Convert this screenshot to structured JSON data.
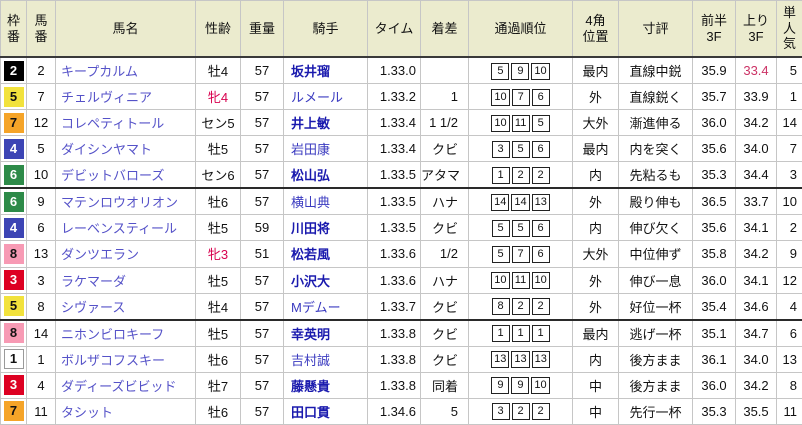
{
  "table": {
    "columns": [
      {
        "key": "waku",
        "label": "枠\n番"
      },
      {
        "key": "umaban",
        "label": "馬\n番"
      },
      {
        "key": "name",
        "label": "馬名"
      },
      {
        "key": "sexage",
        "label": "性齢"
      },
      {
        "key": "weight",
        "label": "重量"
      },
      {
        "key": "jockey",
        "label": "騎手"
      },
      {
        "key": "time",
        "label": "タイム"
      },
      {
        "key": "margin",
        "label": "着差"
      },
      {
        "key": "passing",
        "label": "通過順位"
      },
      {
        "key": "corner",
        "label": "4角\n位置"
      },
      {
        "key": "comment",
        "label": "寸評"
      },
      {
        "key": "first3f",
        "label": "前半\n3F"
      },
      {
        "key": "last3f",
        "label": "上り\n3F"
      },
      {
        "key": "pop",
        "label": "単\n人\n気"
      }
    ],
    "rows": [
      {
        "waku": "2",
        "umaban": "2",
        "name": "キープカルム",
        "sexage": "牡4",
        "sex_red": false,
        "weight": "57",
        "jockey": "坂井瑠",
        "jockey_bold": true,
        "time": "1.33.0",
        "margin": "",
        "passing": [
          "5",
          "9",
          "10"
        ],
        "corner": "最内",
        "comment": "直線中鋭",
        "first3f": "35.9",
        "last3f": "33.4",
        "last3f_red": true,
        "pop": "5",
        "group_end": false
      },
      {
        "waku": "5",
        "umaban": "7",
        "name": "チェルヴィニア",
        "sexage": "牝4",
        "sex_red": true,
        "weight": "57",
        "jockey": "ルメール",
        "jockey_bold": false,
        "time": "1.33.2",
        "margin": "1",
        "passing": [
          "10",
          "7",
          "6"
        ],
        "corner": "外",
        "comment": "直線鋭く",
        "first3f": "35.7",
        "last3f": "33.9",
        "last3f_red": false,
        "pop": "1",
        "group_end": false
      },
      {
        "waku": "7",
        "umaban": "12",
        "name": "コレペティトール",
        "sexage": "セン5",
        "sex_red": false,
        "weight": "57",
        "jockey": "井上敏",
        "jockey_bold": true,
        "time": "1.33.4",
        "margin": "1 1/2",
        "passing": [
          "10",
          "11",
          "5"
        ],
        "corner": "大外",
        "comment": "漸進伸る",
        "first3f": "36.0",
        "last3f": "34.2",
        "last3f_red": false,
        "pop": "14",
        "group_end": false
      },
      {
        "waku": "4",
        "umaban": "5",
        "name": "ダイシンヤマト",
        "sexage": "牡5",
        "sex_red": false,
        "weight": "57",
        "jockey": "岩田康",
        "jockey_bold": false,
        "time": "1.33.4",
        "margin": "クビ",
        "passing": [
          "3",
          "5",
          "6"
        ],
        "corner": "最内",
        "comment": "内を突く",
        "first3f": "35.6",
        "last3f": "34.0",
        "last3f_red": false,
        "pop": "7",
        "group_end": false
      },
      {
        "waku": "6",
        "umaban": "10",
        "name": "デビットバローズ",
        "sexage": "セン6",
        "sex_red": false,
        "weight": "57",
        "jockey": "松山弘",
        "jockey_bold": true,
        "time": "1.33.5",
        "margin": "アタマ",
        "passing": [
          "1",
          "2",
          "2"
        ],
        "corner": "内",
        "comment": "先粘るも",
        "first3f": "35.3",
        "last3f": "34.4",
        "last3f_red": false,
        "pop": "3",
        "group_end": true
      },
      {
        "waku": "6",
        "umaban": "9",
        "name": "マテンロウオリオン",
        "sexage": "牡6",
        "sex_red": false,
        "weight": "57",
        "jockey": "横山典",
        "jockey_bold": false,
        "time": "1.33.5",
        "margin": "ハナ",
        "passing": [
          "14",
          "14",
          "13"
        ],
        "corner": "外",
        "comment": "殿り伸も",
        "first3f": "36.5",
        "last3f": "33.7",
        "last3f_red": false,
        "pop": "10",
        "group_end": false
      },
      {
        "waku": "4",
        "umaban": "6",
        "name": "レーベンスティール",
        "sexage": "牡5",
        "sex_red": false,
        "weight": "59",
        "jockey": "川田将",
        "jockey_bold": true,
        "time": "1.33.5",
        "margin": "クビ",
        "passing": [
          "5",
          "5",
          "6"
        ],
        "corner": "内",
        "comment": "伸び欠く",
        "first3f": "35.6",
        "last3f": "34.1",
        "last3f_red": false,
        "pop": "2",
        "group_end": false
      },
      {
        "waku": "8",
        "umaban": "13",
        "name": "ダンツエラン",
        "sexage": "牝3",
        "sex_red": true,
        "weight": "51",
        "jockey": "松若風",
        "jockey_bold": true,
        "time": "1.33.6",
        "margin": "1/2",
        "passing": [
          "5",
          "7",
          "6"
        ],
        "corner": "大外",
        "comment": "中位伸ず",
        "first3f": "35.8",
        "last3f": "34.2",
        "last3f_red": false,
        "pop": "9",
        "group_end": false
      },
      {
        "waku": "3",
        "umaban": "3",
        "name": "ラケマーダ",
        "sexage": "牡5",
        "sex_red": false,
        "weight": "57",
        "jockey": "小沢大",
        "jockey_bold": true,
        "time": "1.33.6",
        "margin": "ハナ",
        "passing": [
          "10",
          "11",
          "10"
        ],
        "corner": "外",
        "comment": "伸び一息",
        "first3f": "36.0",
        "last3f": "34.1",
        "last3f_red": false,
        "pop": "12",
        "group_end": false
      },
      {
        "waku": "5",
        "umaban": "8",
        "name": "シヴァース",
        "sexage": "牡4",
        "sex_red": false,
        "weight": "57",
        "jockey": "Mデムー",
        "jockey_bold": false,
        "time": "1.33.7",
        "margin": "クビ",
        "passing": [
          "8",
          "2",
          "2"
        ],
        "corner": "外",
        "comment": "好位一杯",
        "first3f": "35.4",
        "last3f": "34.6",
        "last3f_red": false,
        "pop": "4",
        "group_end": true
      },
      {
        "waku": "8",
        "umaban": "14",
        "name": "ニホンビロキーフ",
        "sexage": "牡5",
        "sex_red": false,
        "weight": "57",
        "jockey": "幸英明",
        "jockey_bold": true,
        "time": "1.33.8",
        "margin": "クビ",
        "passing": [
          "1",
          "1",
          "1"
        ],
        "corner": "最内",
        "comment": "逃げ一杯",
        "first3f": "35.1",
        "last3f": "34.7",
        "last3f_red": false,
        "pop": "6",
        "group_end": false
      },
      {
        "waku": "1",
        "umaban": "1",
        "name": "ボルザコフスキー",
        "sexage": "牡6",
        "sex_red": false,
        "weight": "57",
        "jockey": "吉村誠",
        "jockey_bold": false,
        "time": "1.33.8",
        "margin": "クビ",
        "passing": [
          "13",
          "13",
          "13"
        ],
        "corner": "内",
        "comment": "後方まま",
        "first3f": "36.1",
        "last3f": "34.0",
        "last3f_red": false,
        "pop": "13",
        "group_end": false
      },
      {
        "waku": "3",
        "umaban": "4",
        "name": "ダディーズビビッド",
        "sexage": "牡7",
        "sex_red": false,
        "weight": "57",
        "jockey": "藤懸貴",
        "jockey_bold": true,
        "time": "1.33.8",
        "margin": "同着",
        "passing": [
          "9",
          "9",
          "10"
        ],
        "corner": "中",
        "comment": "後方まま",
        "first3f": "36.0",
        "last3f": "34.2",
        "last3f_red": false,
        "pop": "8",
        "group_end": false
      },
      {
        "waku": "7",
        "umaban": "11",
        "name": "タシット",
        "sexage": "牡6",
        "sex_red": false,
        "weight": "57",
        "jockey": "田口貫",
        "jockey_bold": true,
        "time": "1.34.6",
        "margin": "5",
        "passing": [
          "3",
          "2",
          "2"
        ],
        "corner": "中",
        "comment": "先行一杯",
        "first3f": "35.3",
        "last3f": "35.5",
        "last3f_red": false,
        "pop": "11",
        "group_end": false
      }
    ]
  },
  "frame_colors": {
    "1": {
      "bg": "#ffffff",
      "fg": "#111111",
      "border": true
    },
    "2": {
      "bg": "#000000",
      "fg": "#ffffff",
      "border": false
    },
    "3": {
      "bg": "#dd0022",
      "fg": "#ffffff",
      "border": false
    },
    "4": {
      "bg": "#3c44b4",
      "fg": "#ffffff",
      "border": false
    },
    "5": {
      "bg": "#f2e23c",
      "fg": "#111111",
      "border": false
    },
    "6": {
      "bg": "#2d8a48",
      "fg": "#ffffff",
      "border": false
    },
    "7": {
      "bg": "#f5a428",
      "fg": "#111111",
      "border": false
    },
    "8": {
      "bg": "#f79ab4",
      "fg": "#111111",
      "border": false
    }
  },
  "colors": {
    "header_bg": "#ebebce",
    "horse_link": "#5552c8",
    "jockey_link": "#3b3bc0",
    "sex_female_red": "#d8004e",
    "fast_last3f_red": "#cc3366"
  }
}
